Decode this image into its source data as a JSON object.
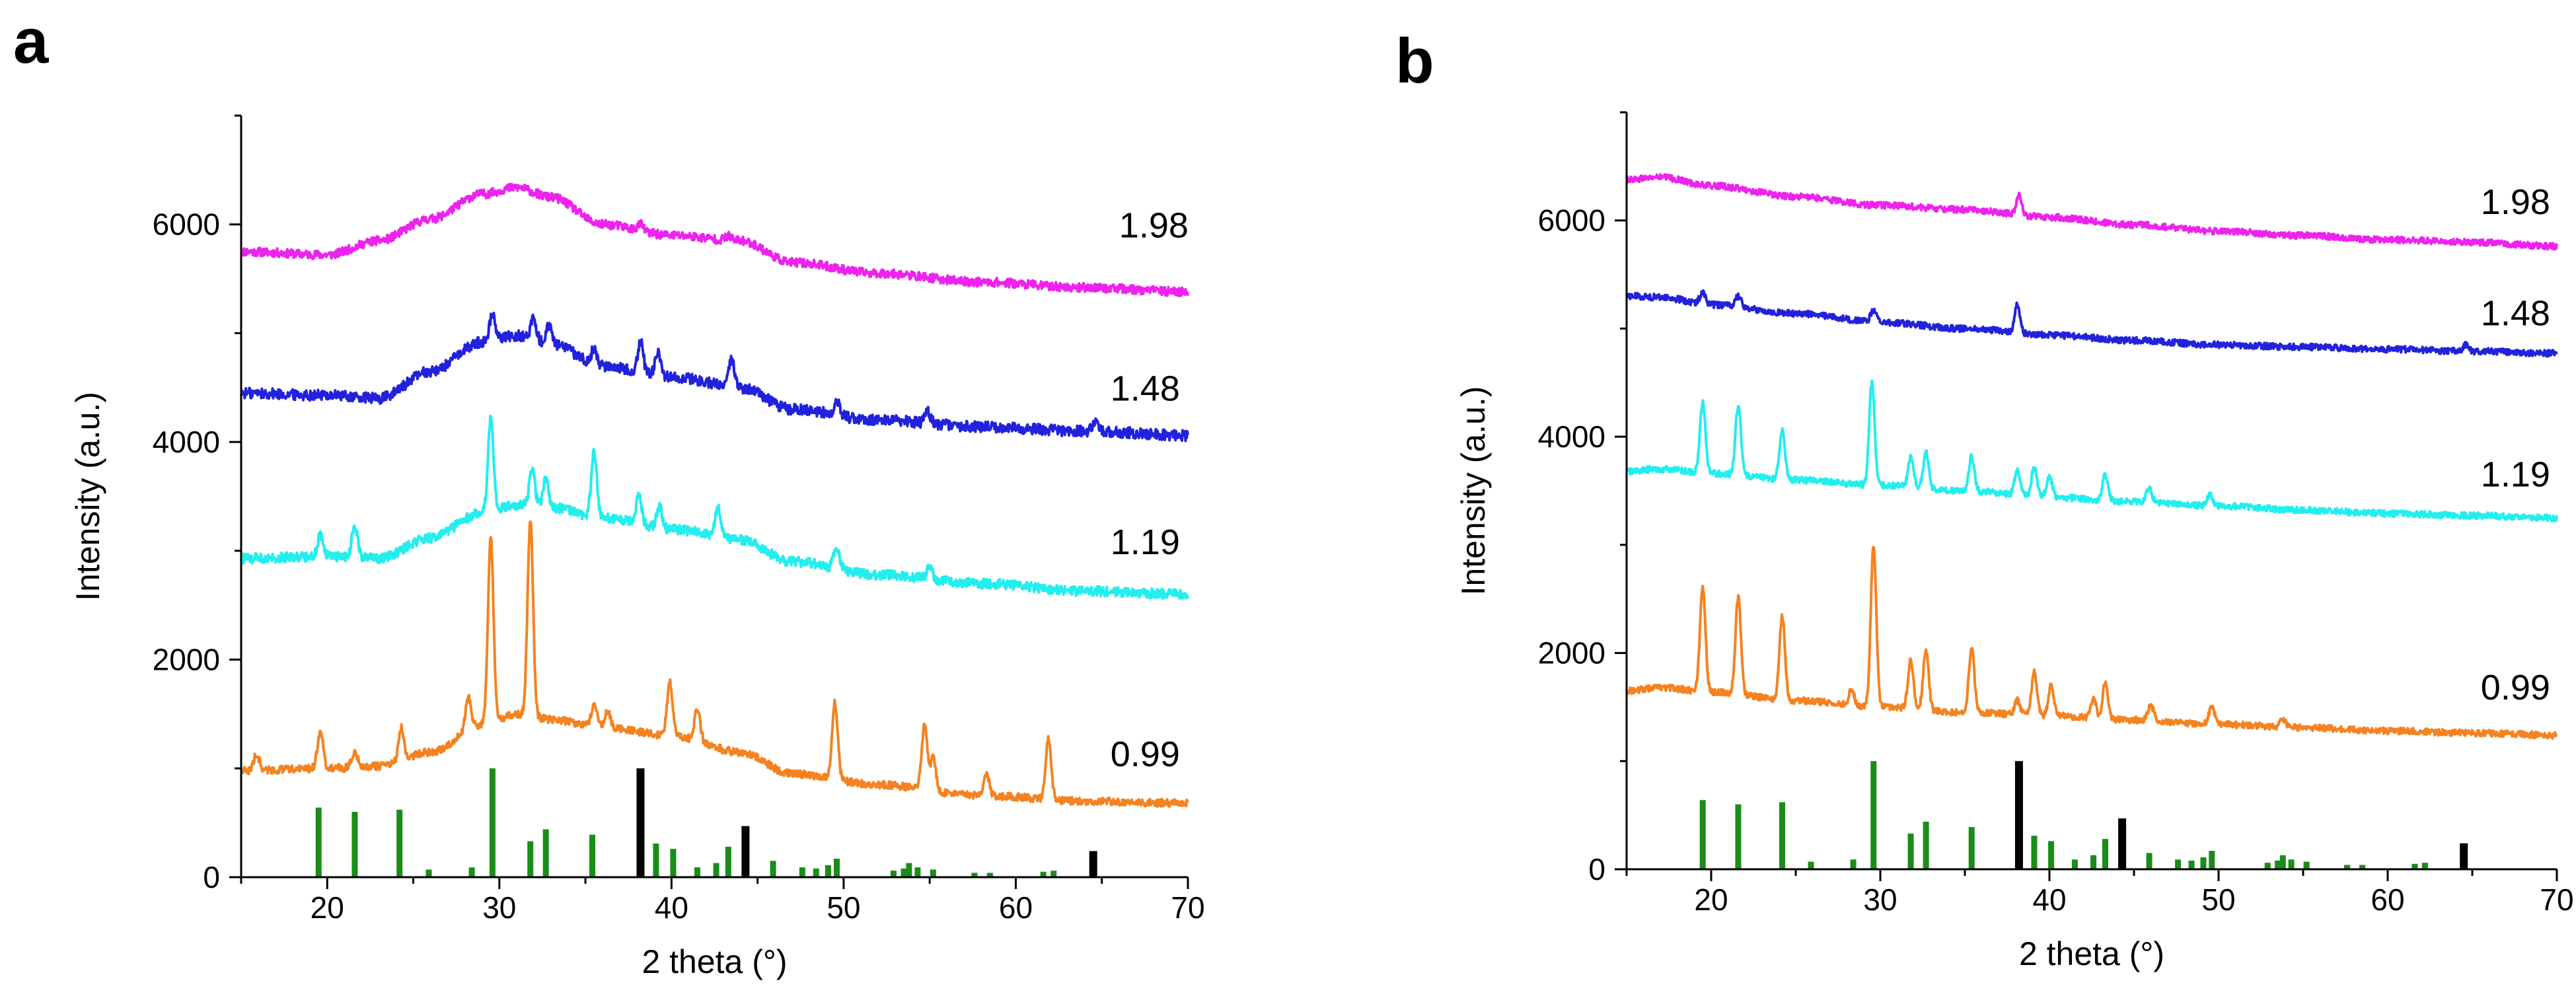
{
  "chart_data": [
    {
      "type": "line",
      "panel_label": "a",
      "xlabel": "2 theta (°)",
      "ylabel": "Intensity (a.u.)",
      "xlim": [
        15,
        70
      ],
      "ylim": [
        0,
        7000
      ],
      "xticks": [
        20,
        30,
        40,
        50,
        60,
        70
      ],
      "yticks": [
        0,
        2000,
        4000,
        6000
      ],
      "series": [
        {
          "name": "1.98",
          "color": "#ee22ee",
          "label_x": 66,
          "label_y": 5880,
          "base": [
            [
              15,
              5750
            ],
            [
              20,
              5720
            ],
            [
              23,
              5850
            ],
            [
              26,
              6050
            ],
            [
              29,
              6280
            ],
            [
              31,
              6340
            ],
            [
              33,
              6250
            ],
            [
              36,
              6000
            ],
            [
              40,
              5900
            ],
            [
              44,
              5850
            ],
            [
              47,
              5650
            ],
            [
              52,
              5550
            ],
            [
              58,
              5470
            ],
            [
              64,
              5420
            ],
            [
              70,
              5380
            ]
          ],
          "peaks": [
            [
              38.2,
              60
            ],
            [
              43.3,
              40
            ]
          ],
          "noise": 40
        },
        {
          "name": "1.48",
          "color": "#2222dd",
          "label_x": 65.5,
          "label_y": 4380,
          "base": [
            [
              15,
              4450
            ],
            [
              20,
              4430
            ],
            [
              23,
              4400
            ],
            [
              26,
              4650
            ],
            [
              29,
              4920
            ],
            [
              31,
              4980
            ],
            [
              33,
              4900
            ],
            [
              36,
              4700
            ],
            [
              40,
              4600
            ],
            [
              44,
              4500
            ],
            [
              47,
              4300
            ],
            [
              52,
              4200
            ],
            [
              58,
              4140
            ],
            [
              64,
              4100
            ],
            [
              70,
              4060
            ]
          ],
          "peaks": [
            [
              29.6,
              260
            ],
            [
              32,
              200
            ],
            [
              32.9,
              180
            ],
            [
              35.5,
              140
            ],
            [
              38.2,
              280
            ],
            [
              39.2,
              220
            ],
            [
              43.5,
              250
            ],
            [
              49.6,
              140
            ],
            [
              54.9,
              110
            ],
            [
              64.6,
              80
            ]
          ],
          "noise": 50
        },
        {
          "name": "1.19",
          "color": "#22eeee",
          "label_x": 65.5,
          "label_y": 2970,
          "base": [
            [
              15,
              2930
            ],
            [
              20,
              2950
            ],
            [
              23,
              2930
            ],
            [
              26,
              3120
            ],
            [
              29,
              3350
            ],
            [
              31,
              3420
            ],
            [
              33,
              3400
            ],
            [
              36,
              3300
            ],
            [
              40,
              3200
            ],
            [
              44,
              3100
            ],
            [
              47,
              2900
            ],
            [
              52,
              2780
            ],
            [
              58,
              2700
            ],
            [
              64,
              2630
            ],
            [
              70,
              2600
            ]
          ],
          "peaks": [
            [
              19.6,
              200
            ],
            [
              21.6,
              310
            ],
            [
              29.5,
              850
            ],
            [
              31.9,
              350
            ],
            [
              32.7,
              260
            ],
            [
              35.5,
              600
            ],
            [
              38.1,
              280
            ],
            [
              39.3,
              200
            ],
            [
              42.7,
              280
            ],
            [
              49.6,
              200
            ],
            [
              55,
              120
            ]
          ],
          "noise": 45
        },
        {
          "name": "0.99",
          "color": "#f58220",
          "label_x": 65.5,
          "label_y": 1020,
          "base": [
            [
              15,
              980
            ],
            [
              20,
              1000
            ],
            [
              23,
              1020
            ],
            [
              26,
              1150
            ],
            [
              29,
              1400
            ],
            [
              31,
              1500
            ],
            [
              33,
              1450
            ],
            [
              36,
              1380
            ],
            [
              40,
              1300
            ],
            [
              44,
              1150
            ],
            [
              47,
              950
            ],
            [
              52,
              850
            ],
            [
              58,
              750
            ],
            [
              64,
              700
            ],
            [
              70,
              680
            ]
          ],
          "peaks": [
            [
              15.9,
              150
            ],
            [
              19.6,
              350
            ],
            [
              21.6,
              150
            ],
            [
              24.3,
              300
            ],
            [
              28.2,
              300
            ],
            [
              29.5,
              1700
            ],
            [
              31.8,
              1800
            ],
            [
              35.5,
              200
            ],
            [
              36.3,
              150
            ],
            [
              39.9,
              500
            ],
            [
              41.5,
              300
            ],
            [
              49.5,
              700
            ],
            [
              54.7,
              600
            ],
            [
              55.2,
              300
            ],
            [
              58.3,
              200
            ],
            [
              61.9,
              550
            ]
          ],
          "noise": 35
        }
      ],
      "reference_bars": {
        "green": [
          [
            19.5,
            640
          ],
          [
            21.6,
            600
          ],
          [
            24.2,
            620
          ],
          [
            25.9,
            70
          ],
          [
            28.4,
            90
          ],
          [
            29.6,
            1000
          ],
          [
            31.8,
            330
          ],
          [
            32.7,
            440
          ],
          [
            35.4,
            390
          ],
          [
            39.1,
            310
          ],
          [
            40.1,
            260
          ],
          [
            41.5,
            90
          ],
          [
            42.6,
            130
          ],
          [
            43.3,
            280
          ],
          [
            45.9,
            150
          ],
          [
            47.6,
            90
          ],
          [
            48.4,
            80
          ],
          [
            49.1,
            110
          ],
          [
            49.6,
            170
          ],
          [
            52.9,
            60
          ],
          [
            53.5,
            80
          ],
          [
            53.8,
            130
          ],
          [
            54.3,
            90
          ],
          [
            55.2,
            70
          ],
          [
            57.6,
            40
          ],
          [
            58.5,
            40
          ],
          [
            61.6,
            50
          ],
          [
            62.2,
            60
          ]
        ],
        "black": [
          [
            38.2,
            1000
          ],
          [
            44.3,
            470
          ],
          [
            64.5,
            240
          ]
        ]
      }
    },
    {
      "type": "line",
      "panel_label": "b",
      "xlabel": "2 theta (°)",
      "ylabel": "Intensity (a.u.)",
      "xlim": [
        15,
        70
      ],
      "ylim": [
        0,
        7000
      ],
      "xticks": [
        20,
        30,
        40,
        50,
        60,
        70
      ],
      "yticks": [
        0,
        2000,
        4000,
        6000
      ],
      "series": [
        {
          "name": "1.98",
          "color": "#ee22ee",
          "label_x": 65.5,
          "label_y": 6060,
          "base": [
            [
              15,
              6380
            ],
            [
              17,
              6400
            ],
            [
              20,
              6320
            ],
            [
              25,
              6220
            ],
            [
              30,
              6140
            ],
            [
              35,
              6100
            ],
            [
              40,
              6030
            ],
            [
              45,
              5960
            ],
            [
              50,
              5900
            ],
            [
              55,
              5860
            ],
            [
              60,
              5820
            ],
            [
              65,
              5800
            ],
            [
              70,
              5760
            ]
          ],
          "peaks": [
            [
              38.2,
              180
            ]
          ],
          "noise": 30
        },
        {
          "name": "1.48",
          "color": "#2222dd",
          "label_x": 65.5,
          "label_y": 5030,
          "base": [
            [
              15,
              5300
            ],
            [
              17,
              5290
            ],
            [
              20,
              5220
            ],
            [
              25,
              5140
            ],
            [
              30,
              5060
            ],
            [
              35,
              5000
            ],
            [
              40,
              4940
            ],
            [
              45,
              4890
            ],
            [
              50,
              4850
            ],
            [
              55,
              4830
            ],
            [
              60,
              4810
            ],
            [
              65,
              4790
            ],
            [
              70,
              4770
            ]
          ],
          "peaks": [
            [
              19.5,
              120
            ],
            [
              21.6,
              100
            ],
            [
              29.6,
              110
            ],
            [
              38.1,
              260
            ],
            [
              64.6,
              60
            ]
          ],
          "noise": 30
        },
        {
          "name": "1.19",
          "color": "#22eeee",
          "label_x": 65.5,
          "label_y": 3540,
          "base": [
            [
              15,
              3680
            ],
            [
              17,
              3700
            ],
            [
              20,
              3660
            ],
            [
              25,
              3600
            ],
            [
              30,
              3550
            ],
            [
              35,
              3500
            ],
            [
              40,
              3440
            ],
            [
              45,
              3400
            ],
            [
              50,
              3360
            ],
            [
              55,
              3320
            ],
            [
              60,
              3290
            ],
            [
              65,
              3270
            ],
            [
              70,
              3250
            ]
          ],
          "peaks": [
            [
              19.5,
              650
            ],
            [
              21.6,
              650
            ],
            [
              24.2,
              470
            ],
            [
              29.5,
              950
            ],
            [
              31.8,
              270
            ],
            [
              32.7,
              330
            ],
            [
              35.4,
              320
            ],
            [
              38.1,
              230
            ],
            [
              39.1,
              270
            ],
            [
              40,
              200
            ],
            [
              43.3,
              230
            ],
            [
              45.9,
              130
            ],
            [
              49.5,
              100
            ]
          ],
          "noise": 30
        },
        {
          "name": "0.99",
          "color": "#f58220",
          "label_x": 65.5,
          "label_y": 1570,
          "base": [
            [
              15,
              1650
            ],
            [
              17,
              1680
            ],
            [
              20,
              1640
            ],
            [
              25,
              1560
            ],
            [
              30,
              1500
            ],
            [
              35,
              1450
            ],
            [
              40,
              1420
            ],
            [
              45,
              1380
            ],
            [
              50,
              1340
            ],
            [
              55,
              1310
            ],
            [
              60,
              1280
            ],
            [
              65,
              1260
            ],
            [
              70,
              1240
            ]
          ],
          "peaks": [
            [
              19.5,
              980
            ],
            [
              21.6,
              900
            ],
            [
              24.2,
              780
            ],
            [
              28.3,
              150
            ],
            [
              29.6,
              1500
            ],
            [
              31.8,
              450
            ],
            [
              32.7,
              550
            ],
            [
              35.4,
              600
            ],
            [
              38.1,
              130
            ],
            [
              39.1,
              400
            ],
            [
              40.1,
              280
            ],
            [
              42.6,
              180
            ],
            [
              43.3,
              330
            ],
            [
              46,
              150
            ],
            [
              49.6,
              170
            ],
            [
              53.8,
              80
            ]
          ],
          "noise": 30
        }
      ],
      "reference_bars": {
        "green": [
          [
            19.5,
            640
          ],
          [
            21.6,
            600
          ],
          [
            24.2,
            620
          ],
          [
            25.9,
            70
          ],
          [
            28.4,
            90
          ],
          [
            29.6,
            1000
          ],
          [
            31.8,
            330
          ],
          [
            32.7,
            440
          ],
          [
            35.4,
            390
          ],
          [
            39.1,
            310
          ],
          [
            40.1,
            260
          ],
          [
            41.5,
            90
          ],
          [
            42.6,
            130
          ],
          [
            43.3,
            280
          ],
          [
            45.9,
            150
          ],
          [
            47.6,
            90
          ],
          [
            48.4,
            80
          ],
          [
            49.1,
            110
          ],
          [
            49.6,
            170
          ],
          [
            52.9,
            60
          ],
          [
            53.5,
            80
          ],
          [
            53.8,
            130
          ],
          [
            54.3,
            90
          ],
          [
            55.2,
            70
          ],
          [
            57.6,
            40
          ],
          [
            58.5,
            40
          ],
          [
            61.6,
            50
          ],
          [
            62.2,
            60
          ]
        ],
        "black": [
          [
            38.2,
            1000
          ],
          [
            44.3,
            470
          ],
          [
            64.5,
            240
          ]
        ]
      }
    }
  ]
}
